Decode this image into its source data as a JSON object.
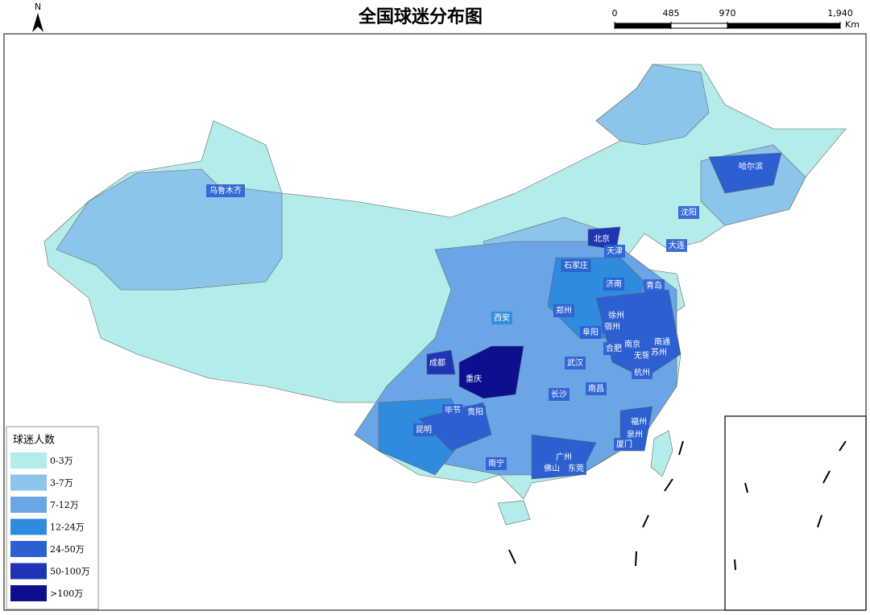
{
  "title": "全国球迷分布图",
  "north": "N",
  "scale": {
    "ticks": [
      0,
      485,
      970,
      {
        "value": 1940,
        "label": "1,940"
      }
    ],
    "unit": "Km"
  },
  "legend": {
    "title": "球迷人数",
    "items": [
      {
        "label": "0-3万",
        "color": "#b3ece9"
      },
      {
        "label": "3-7万",
        "color": "#8cc4ea"
      },
      {
        "label": "7-12万",
        "color": "#6aa6e6"
      },
      {
        "label": "12-24万",
        "color": "#2e8be0"
      },
      {
        "label": "24-50万",
        "color": "#2c5fd0"
      },
      {
        "label": "50-100万",
        "color": "#1f35b5"
      },
      {
        "label": ">100万",
        "color": "#0d0f8f"
      }
    ]
  },
  "cities": [
    {
      "name": "乌鲁木齐",
      "level": 4
    },
    {
      "name": "哈尔滨",
      "level": 4
    },
    {
      "name": "沈阳",
      "level": 4
    },
    {
      "name": "北京",
      "level": 5
    },
    {
      "name": "天津",
      "level": 4
    },
    {
      "name": "大连",
      "level": 4
    },
    {
      "name": "石家庄",
      "level": 4
    },
    {
      "name": "济南",
      "level": 4
    },
    {
      "name": "青岛",
      "level": 4
    },
    {
      "name": "郑州",
      "level": 4
    },
    {
      "name": "西安",
      "level": 3
    },
    {
      "name": "徐州",
      "level": 4
    },
    {
      "name": "宿州",
      "level": 4
    },
    {
      "name": "阜阳",
      "level": 4
    },
    {
      "name": "合肥",
      "level": 4
    },
    {
      "name": "南京",
      "level": 4
    },
    {
      "name": "南通",
      "level": 4
    },
    {
      "name": "无锡",
      "level": 4
    },
    {
      "name": "苏州",
      "level": 4
    },
    {
      "name": "杭州",
      "level": 4
    },
    {
      "name": "武汉",
      "level": 4
    },
    {
      "name": "成都",
      "level": 5
    },
    {
      "name": "重庆",
      "level": 6
    },
    {
      "name": "长沙",
      "level": 4
    },
    {
      "name": "南昌",
      "level": 4
    },
    {
      "name": "毕节",
      "level": 4
    },
    {
      "name": "贵阳",
      "level": 4
    },
    {
      "name": "昆明",
      "level": 4
    },
    {
      "name": "福州",
      "level": 4
    },
    {
      "name": "泉州",
      "level": 4
    },
    {
      "name": "厦门",
      "level": 4
    },
    {
      "name": "南宁",
      "level": 4
    },
    {
      "name": "广州",
      "level": 4
    },
    {
      "name": "佛山",
      "level": 4
    },
    {
      "name": "东莞",
      "level": 4
    }
  ]
}
